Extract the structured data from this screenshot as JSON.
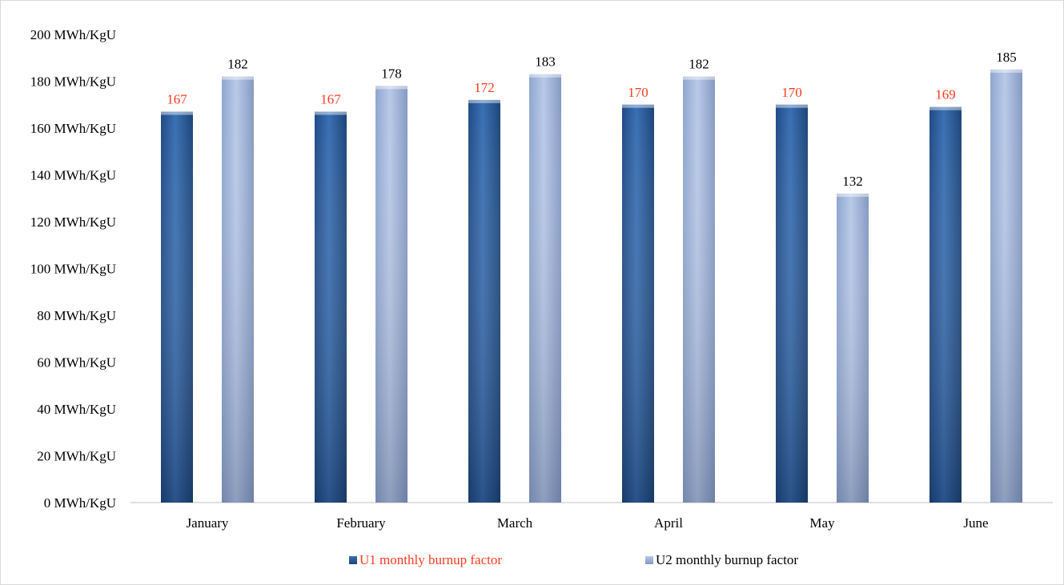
{
  "chart_data": {
    "type": "bar",
    "categories": [
      "January",
      "February",
      "March",
      "April",
      "May",
      "June"
    ],
    "series": [
      {
        "name": "U1 monthly burnup factor",
        "values": [
          167,
          167,
          172,
          170,
          170,
          169
        ],
        "color": "#2e5f9e",
        "label_color": "#ff3b1f"
      },
      {
        "name": "U2 monthly burnup factor",
        "values": [
          182,
          178,
          183,
          182,
          132,
          185
        ],
        "color": "#a9bde0",
        "label_color": "#000000"
      }
    ],
    "ylim": [
      0,
      200
    ],
    "ytick_step": 20,
    "ytick_suffix": " MWh/KgU",
    "grid": false,
    "legend_position": "bottom"
  }
}
